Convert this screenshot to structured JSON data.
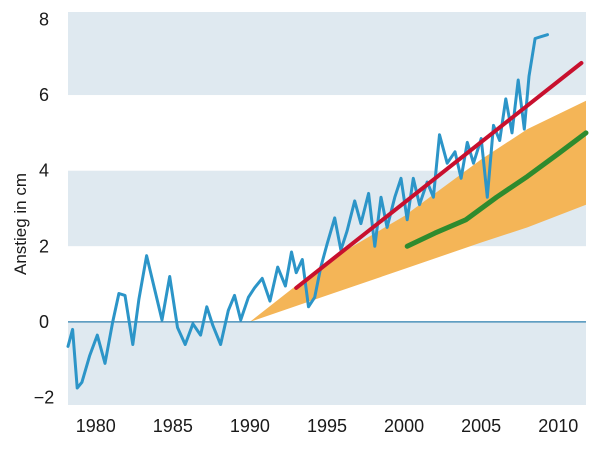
{
  "chart_data": {
    "type": "line",
    "title": "",
    "xlabel": "",
    "ylabel": "Anstieg in cm",
    "xlim": [
      1978.2,
      2011.8
    ],
    "ylim": [
      -2.2,
      8.2
    ],
    "xticks": [
      1980,
      1985,
      1990,
      1995,
      2000,
      2005,
      2010
    ],
    "yticks": [
      -2,
      0,
      2,
      4,
      6,
      8
    ],
    "x_tick_labels": [
      "1980",
      "1985",
      "1990",
      "1995",
      "2000",
      "2005",
      "2010"
    ],
    "y_tick_labels": [
      "−2",
      "0",
      "2",
      "4",
      "6",
      "8"
    ],
    "grid": "alternating horizontal bands",
    "legend": "none",
    "colors": {
      "band_light": "#dfe9f0",
      "band_white": "#ffffff",
      "observed": "#2c95c8",
      "trend": "#c8102e",
      "projection_range": "#f4b557",
      "projection_central": "#2e8b2e",
      "zero_line": "#2c7fae"
    },
    "series": [
      {
        "style": "line",
        "color": "#2c95c8",
        "x": [
          1978.2,
          1978.5,
          1978.8,
          1979.1,
          1979.6,
          1980.1,
          1980.6,
          1981.1,
          1981.5,
          1981.9,
          1982.4,
          1982.8,
          1983.3,
          1983.8,
          1984.3,
          1984.8,
          1985.3,
          1985.8,
          1986.3,
          1986.8,
          1987.2,
          1987.6,
          1988.1,
          1988.6,
          1989.0,
          1989.4,
          1989.9,
          1990.3,
          1990.8,
          1991.3,
          1991.8,
          1992.3,
          1992.7,
          1993.0,
          1993.4,
          1993.8,
          1994.2,
          1994.6,
          1995.0,
          1995.5,
          1995.9,
          1996.3,
          1996.8,
          1997.2,
          1997.7,
          1998.1,
          1998.5,
          1998.9,
          1999.4,
          1999.8,
          2000.2,
          2000.6,
          2001.0,
          2001.5,
          2001.9,
          2002.3,
          2002.8,
          2003.3,
          2003.7,
          2004.1,
          2004.5,
          2005.0,
          2005.4,
          2005.8,
          2006.2,
          2006.6,
          2007.0,
          2007.4,
          2007.8,
          2008.1,
          2008.5,
          2008.9,
          2009.3
        ],
        "values": [
          -0.65,
          -0.2,
          -1.75,
          -1.6,
          -0.9,
          -0.35,
          -1.1,
          0.0,
          0.75,
          0.7,
          -0.6,
          0.6,
          1.75,
          0.9,
          0.05,
          1.2,
          -0.15,
          -0.6,
          -0.05,
          -0.35,
          0.4,
          -0.1,
          -0.6,
          0.3,
          0.7,
          0.05,
          0.65,
          0.9,
          1.15,
          0.55,
          1.45,
          0.95,
          1.85,
          1.3,
          1.65,
          0.4,
          0.65,
          1.45,
          2.05,
          2.75,
          1.9,
          2.4,
          3.2,
          2.6,
          3.4,
          2.0,
          3.3,
          2.5,
          3.3,
          3.8,
          2.7,
          3.8,
          3.1,
          3.7,
          3.3,
          4.95,
          4.2,
          4.5,
          3.8,
          4.75,
          4.2,
          4.85,
          3.3,
          5.2,
          4.8,
          5.9,
          5.0,
          6.4,
          5.1,
          6.5,
          7.5,
          7.55,
          7.6
        ]
      },
      {
        "style": "line",
        "color": "#c8102e",
        "x": [
          1993.0,
          2011.5
        ],
        "values": [
          0.9,
          6.85
        ]
      },
      {
        "style": "band",
        "color": "#f4b557",
        "x": [
          1990.0,
          1995.0,
          2000.0,
          2005.0,
          2008.0,
          2011.8
        ],
        "lower": [
          0.0,
          0.7,
          1.4,
          2.1,
          2.5,
          3.1
        ],
        "upper": [
          0.0,
          1.6,
          2.8,
          4.3,
          5.1,
          5.85
        ]
      },
      {
        "style": "line",
        "color": "#2e8b2e",
        "x": [
          2000.2,
          2002.0,
          2004.0,
          2006.0,
          2008.0,
          2010.0,
          2011.8
        ],
        "values": [
          2.0,
          2.35,
          2.7,
          3.3,
          3.85,
          4.45,
          5.0
        ]
      }
    ]
  }
}
